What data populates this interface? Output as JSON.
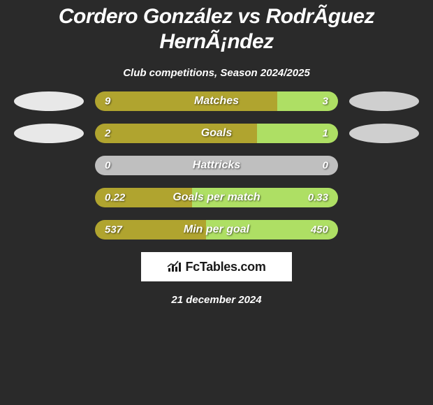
{
  "title": "Cordero González vs RodrÃ­guez HernÃ¡ndez",
  "subtitle": "Club competitions, Season 2024/2025",
  "date": "21 december 2024",
  "logo_text": "FcTables.com",
  "colors": {
    "left_bar": "#b0a42f",
    "right_bar": "#aedf64",
    "neutral_bar": "#bfbfbf",
    "ellipse_left": "#e8e8e8",
    "ellipse_right": "#cfcfcf",
    "background": "#2a2a2a",
    "text": "#ffffff"
  },
  "stats": [
    {
      "label": "Matches",
      "left_val": "9",
      "right_val": "3",
      "left_pct": 75,
      "right_pct": 25,
      "left_color": "#b0a42f",
      "right_color": "#aedf64",
      "show_left_ellipse": true,
      "show_right_ellipse": true,
      "left_ellipse_color": "#e8e8e8",
      "right_ellipse_color": "#cfcfcf"
    },
    {
      "label": "Goals",
      "left_val": "2",
      "right_val": "1",
      "left_pct": 66.7,
      "right_pct": 33.3,
      "left_color": "#b0a42f",
      "right_color": "#aedf64",
      "show_left_ellipse": true,
      "show_right_ellipse": true,
      "left_ellipse_color": "#e8e8e8",
      "right_ellipse_color": "#cfcfcf"
    },
    {
      "label": "Hattricks",
      "left_val": "0",
      "right_val": "0",
      "left_pct": 100,
      "right_pct": 0,
      "left_color": "#bfbfbf",
      "right_color": "#bfbfbf",
      "show_left_ellipse": false,
      "show_right_ellipse": false
    },
    {
      "label": "Goals per match",
      "left_val": "0.22",
      "right_val": "0.33",
      "left_pct": 40,
      "right_pct": 60,
      "left_color": "#b0a42f",
      "right_color": "#aedf64",
      "show_left_ellipse": false,
      "show_right_ellipse": false
    },
    {
      "label": "Min per goal",
      "left_val": "537",
      "right_val": "450",
      "left_pct": 45.6,
      "right_pct": 54.4,
      "left_color": "#b0a42f",
      "right_color": "#aedf64",
      "show_left_ellipse": false,
      "show_right_ellipse": false
    }
  ]
}
